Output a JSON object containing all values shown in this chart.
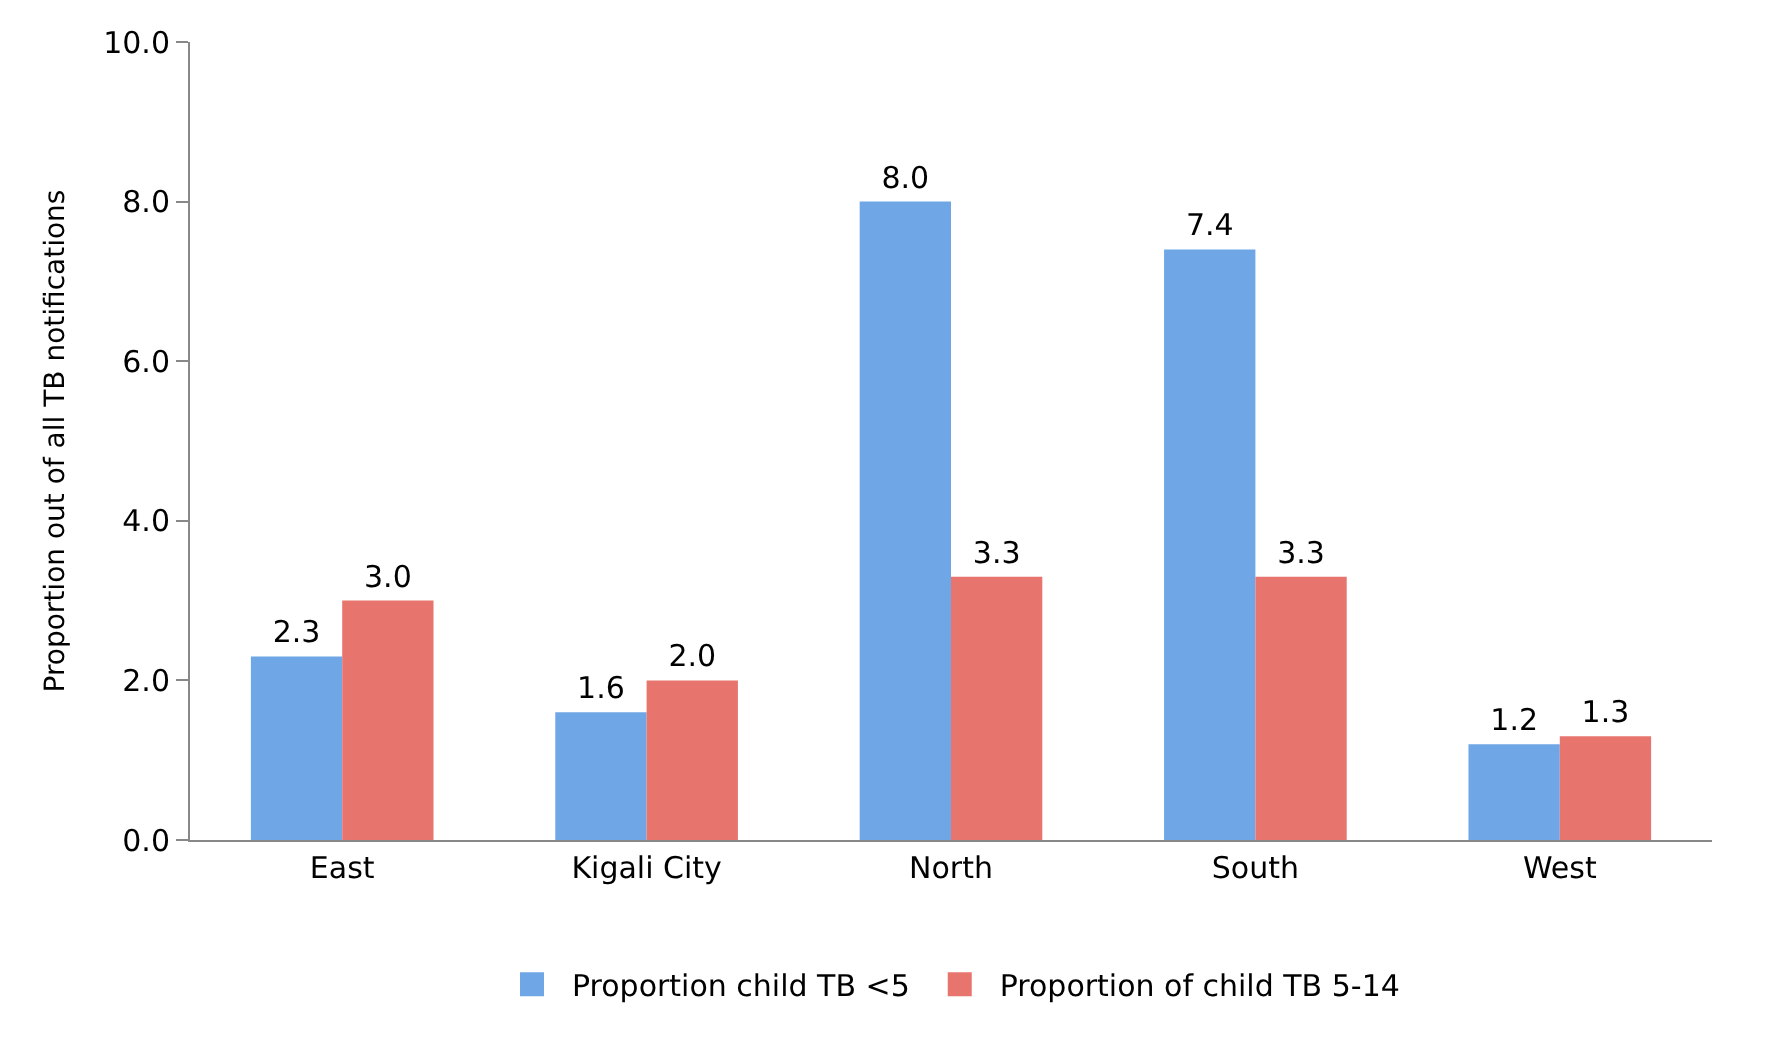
{
  "chart_data": {
    "type": "bar",
    "ylabel": "Proportion out of all TB notifications",
    "categories": [
      "East",
      "Kigali City",
      "North",
      "South",
      "West"
    ],
    "series": [
      {
        "name": "Proportion child TB <5",
        "color": "#6ea6e6",
        "values": [
          2.3,
          1.6,
          8.0,
          7.4,
          1.2
        ],
        "value_labels": [
          "2.3",
          "1.6",
          "8.0",
          "7.4",
          "1.2"
        ]
      },
      {
        "name": "Proportion of child TB 5-14",
        "color": "#e8746e",
        "values": [
          3.0,
          2.0,
          3.3,
          3.3,
          1.3
        ],
        "value_labels": [
          "3.0",
          "2.0",
          "3.3",
          "3.3",
          "1.3"
        ]
      }
    ],
    "ylim": [
      0,
      10
    ],
    "yticks": [
      {
        "value": 0,
        "label": "0.0"
      },
      {
        "value": 2,
        "label": "2.0"
      },
      {
        "value": 4,
        "label": "4.0"
      },
      {
        "value": 6,
        "label": "6.0"
      },
      {
        "value": 8,
        "label": "8.0"
      },
      {
        "value": 10,
        "label": "10.0"
      }
    ],
    "legend": "bottom"
  }
}
